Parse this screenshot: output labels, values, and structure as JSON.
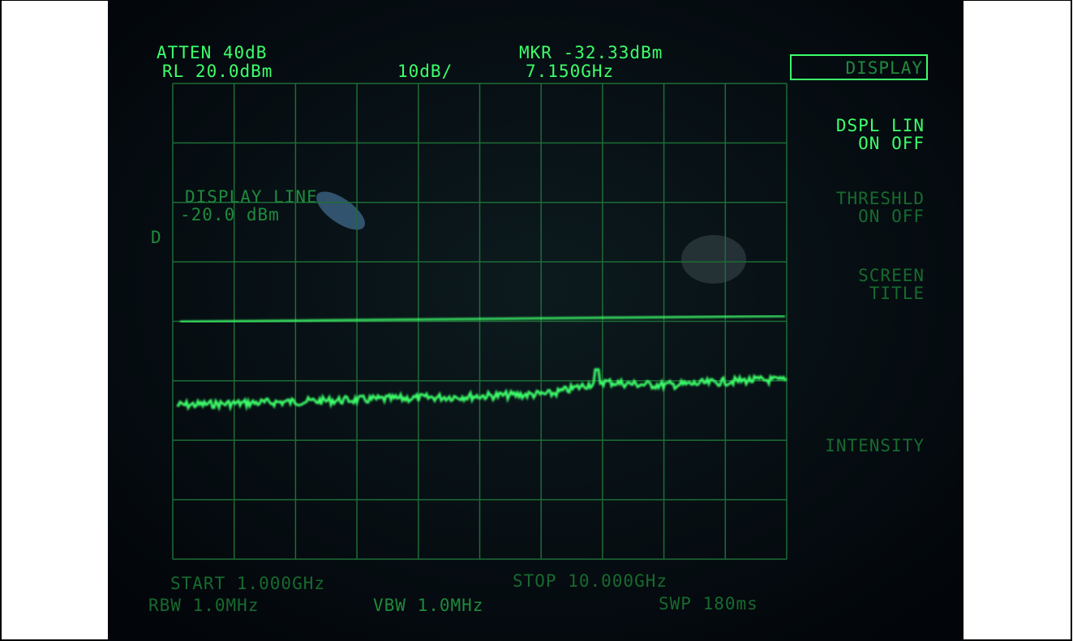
{
  "screen": {
    "header": {
      "atten": "ATTEN 40dB",
      "ref_level": "RL 20.0dBm",
      "scale": "10dB/",
      "marker_level": "MKR -32.33dBm",
      "marker_freq": "7.150GHz"
    },
    "softkeys": {
      "title": "DISPLAY",
      "dspl_lin": "DSPL LIN",
      "dspl_lin_state": "ON OFF",
      "threshold": "THRESHLD",
      "threshold_state": "ON OFF",
      "screen": "SCREEN",
      "screen_title": "TITLE",
      "intensity": "INTENSITY"
    },
    "annotation": {
      "display_line": "DISPLAY LINE",
      "display_line_level": "-20.0 dBm",
      "marker_flag": "D"
    },
    "footer": {
      "start": "START 1.000GHz",
      "stop": "STOP 10.000GHz",
      "rbw": "RBW 1.0MHz",
      "vbw": "VBW 1.0MHz",
      "sweep": "SWP 180ms"
    }
  }
}
